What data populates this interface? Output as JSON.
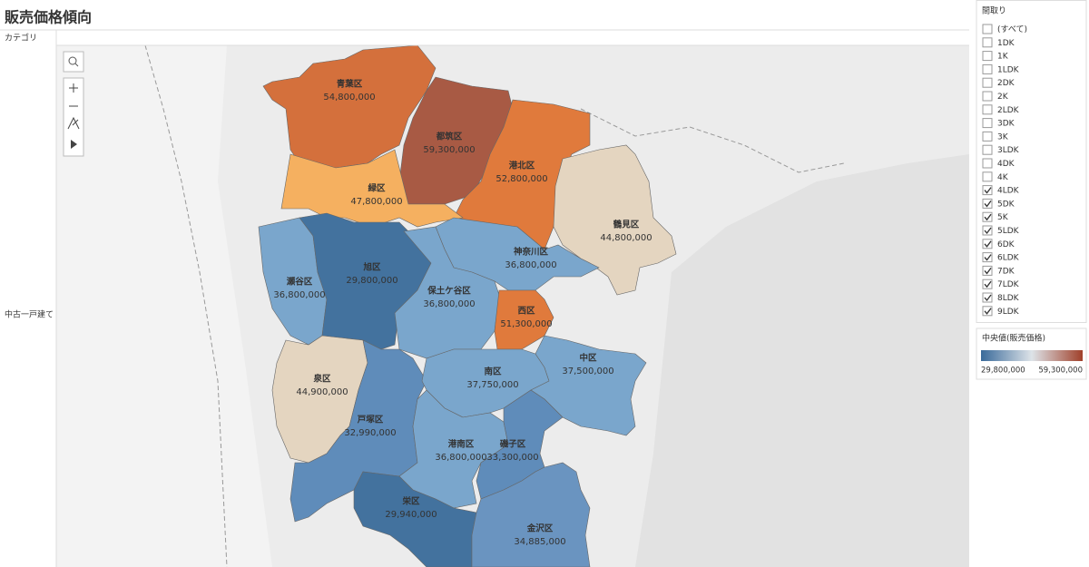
{
  "header": {
    "title": "販売価格傾向",
    "column_header": "カテゴリ",
    "row_label": "中古一戸建て"
  },
  "map": {
    "wards": [
      {
        "name": "青葉区",
        "value": "54,800,000",
        "color": "#d4703c"
      },
      {
        "name": "都筑区",
        "value": "59,300,000",
        "color": "#a85a44"
      },
      {
        "name": "港北区",
        "value": "52,800,000",
        "color": "#e07a3c"
      },
      {
        "name": "緑区",
        "value": "47,800,000",
        "color": "#f5b060"
      },
      {
        "name": "鶴見区",
        "value": "44,800,000",
        "color": "#e4d5c0"
      },
      {
        "name": "神奈川区",
        "value": "36,800,000",
        "color": "#7aa6cc"
      },
      {
        "name": "瀬谷区",
        "value": "36,800,000",
        "color": "#7aa6cc"
      },
      {
        "name": "旭区",
        "value": "29,800,000",
        "color": "#43729e"
      },
      {
        "name": "保土ケ谷区",
        "value": "36,800,000",
        "color": "#7aa6cc"
      },
      {
        "name": "西区",
        "value": "51,300,000",
        "color": "#e07a3c"
      },
      {
        "name": "泉区",
        "value": "44,900,000",
        "color": "#e4d5c0"
      },
      {
        "name": "戸塚区",
        "value": "32,990,000",
        "color": "#5f8cba"
      },
      {
        "name": "南区",
        "value": "37,750,000",
        "color": "#7aa6cc"
      },
      {
        "name": "中区",
        "value": "37,500,000",
        "color": "#7aa6cc"
      },
      {
        "name": "港南区",
        "value": "36,800,000",
        "color": "#7aa6cc"
      },
      {
        "name": "磯子区",
        "value": "33,300,000",
        "color": "#5f8cba"
      },
      {
        "name": "栄区",
        "value": "29,940,000",
        "color": "#43729e"
      },
      {
        "name": "金沢区",
        "value": "34,885,000",
        "color": "#6a94c0"
      }
    ]
  },
  "filter": {
    "title": "間取り",
    "items": [
      {
        "label": "(すべて)",
        "checked": false
      },
      {
        "label": "1DK",
        "checked": false
      },
      {
        "label": "1K",
        "checked": false
      },
      {
        "label": "1LDK",
        "checked": false
      },
      {
        "label": "2DK",
        "checked": false
      },
      {
        "label": "2K",
        "checked": false
      },
      {
        "label": "2LDK",
        "checked": false
      },
      {
        "label": "3DK",
        "checked": false
      },
      {
        "label": "3K",
        "checked": false
      },
      {
        "label": "3LDK",
        "checked": false
      },
      {
        "label": "4DK",
        "checked": false
      },
      {
        "label": "4K",
        "checked": false
      },
      {
        "label": "4LDK",
        "checked": true
      },
      {
        "label": "5DK",
        "checked": true
      },
      {
        "label": "5K",
        "checked": true
      },
      {
        "label": "5LDK",
        "checked": true
      },
      {
        "label": "6DK",
        "checked": true
      },
      {
        "label": "6LDK",
        "checked": true
      },
      {
        "label": "7DK",
        "checked": true
      },
      {
        "label": "7LDK",
        "checked": true
      },
      {
        "label": "8LDK",
        "checked": true
      },
      {
        "label": "9LDK",
        "checked": true
      }
    ]
  },
  "legend": {
    "title": "中央値(販売価格)",
    "min": "29,800,000",
    "max": "59,300,000",
    "colors": [
      "#3a6a9a",
      "#dde3e8",
      "#a0402a"
    ]
  }
}
